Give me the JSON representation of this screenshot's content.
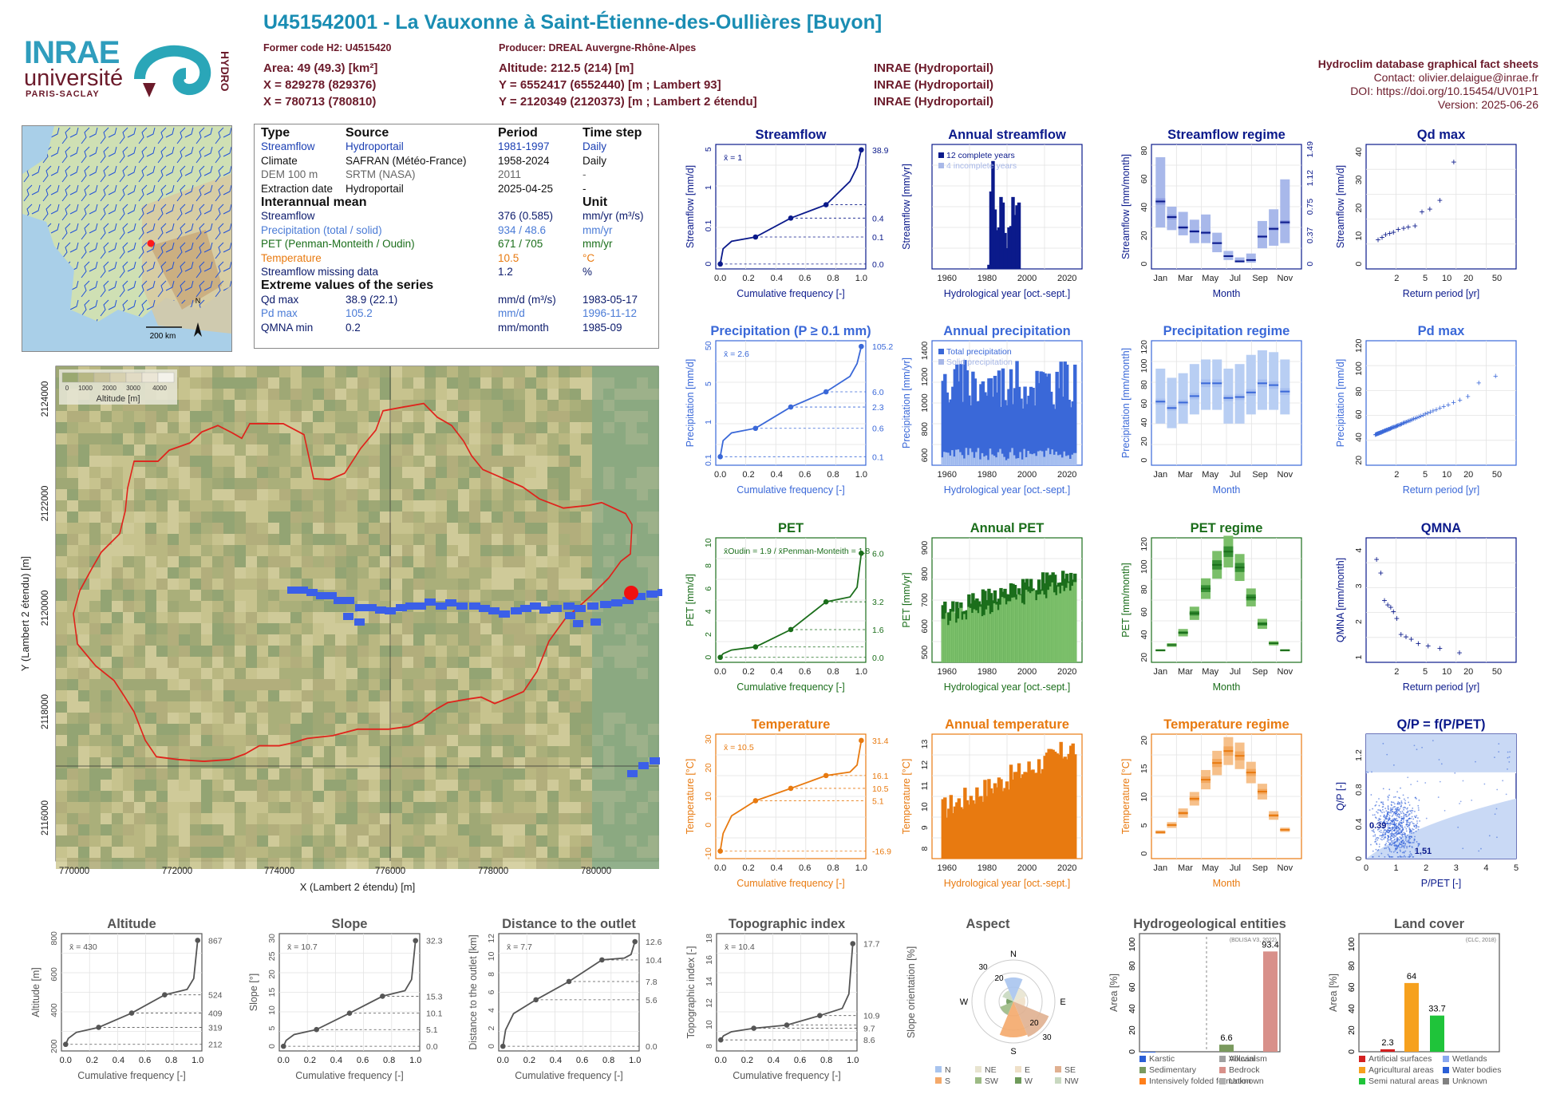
{
  "header": {
    "title": "U451542001 - La Vauxonne à Saint-Étienne-des-Oullières [Buyon]",
    "former_code": "Former code H2: U4515420",
    "producer": "Producer: DREAL Auvergne-Rhône-Alpes",
    "area": "Area: 49 (49.3) [km²]",
    "x_l93": "X = 829278 (829376)",
    "x_l2": "X = 780713 (780810)",
    "altitude": "Altitude: 212.5 (214) [m]",
    "y_l93": "Y = 6552417 (6552440) [m ; Lambert 93]",
    "y_l2": "Y = 2120349 (2120373) [m ; Lambert 2 étendu]",
    "src1": "INRAE (Hydroportail)",
    "src2": "INRAE (Hydroportail)",
    "src3": "INRAE (Hydroportail)"
  },
  "logos": {
    "inrae": "INRAE",
    "univ": "université",
    "ps": "PARIS-SACLAY",
    "hydro": "HYDRO"
  },
  "right_info": {
    "title": "Hydroclim database graphical fact sheets",
    "contact": "Contact: olivier.delaigue@inrae.fr",
    "doi": "DOI: https://doi.org/10.15454/UV01P1",
    "version": "Version: 2025-06-26"
  },
  "france_map": {
    "north": "N",
    "scale": "200 km"
  },
  "info_table": {
    "headers": [
      "Type",
      "Source",
      "Period",
      "Time step"
    ],
    "rows": [
      [
        "Streamflow",
        "Hydroportail",
        "1981-1997",
        "Daily"
      ],
      [
        "Climate",
        "SAFRAN (Météo-France)",
        "1958-2024",
        "Daily"
      ],
      [
        "DEM 100 m",
        "SRTM (NASA)",
        "2011",
        "-"
      ],
      [
        "Extraction date",
        "Hydroportail",
        "2025-04-25",
        "-"
      ]
    ],
    "mean_title": "Interannual mean",
    "unit_title": "Unit",
    "means": [
      [
        "Streamflow",
        "376 (0.585)",
        "mm/yr (m³/s)"
      ],
      [
        "Precipitation (total / solid)",
        "934 / 48.6",
        "mm/yr"
      ],
      [
        "PET (Penman-Monteith / Oudin)",
        "671 / 705",
        "mm/yr"
      ],
      [
        "Temperature",
        "10.5",
        "°C"
      ],
      [
        "Streamflow missing data",
        "1.2",
        "%"
      ]
    ],
    "extreme_title": "Extreme values of the series",
    "extremes": [
      [
        "Qd max",
        "38.9 (22.1)",
        "mm/d (m³/s)",
        "1983-05-17"
      ],
      [
        "Pd max",
        "105.2",
        "mm/d",
        "1996-11-12"
      ],
      [
        "QMNA min",
        "0.2",
        "mm/month",
        "1985-09"
      ]
    ]
  },
  "colors": {
    "streamflow": "#0b1a8b",
    "precip": "#3a68d8",
    "pet": "#1b6e1b",
    "temp": "#e87a10",
    "title": "#1a8db3",
    "dark": "#6b1a2a"
  },
  "chart_data": [
    {
      "type": "line",
      "title": "Streamflow",
      "xlabel": "Cumulative frequency [-]",
      "ylabel": "Streamflow [mm/d]",
      "mean_label": "x̄ = 1",
      "x": [
        0,
        0.25,
        0.5,
        0.75,
        1.0
      ],
      "y": [
        0.0,
        0.1,
        0.4,
        1,
        38.9
      ],
      "right_ticks": [
        "38.9",
        "0.4",
        "0.1",
        "0.0"
      ]
    },
    {
      "type": "bar",
      "title": "Annual streamflow",
      "xlabel": "Hydrological year [oct.-sept.]",
      "ylabel": "Streamflow [mm/yr]",
      "legend": [
        "12 complete years",
        "4 incomplete years"
      ],
      "x": [
        1981,
        1982,
        1983,
        1984,
        1985,
        1986,
        1987,
        1988,
        1989,
        1990,
        1991,
        1992,
        1993,
        1994,
        1995,
        1996
      ],
      "values": [
        30,
        560,
        780,
        430,
        280,
        300,
        520,
        480,
        260,
        150,
        300,
        310,
        520,
        390,
        460,
        480
      ],
      "xticks": [
        "1960",
        "1980",
        "2000",
        "2020"
      ]
    },
    {
      "type": "box",
      "title": "Streamflow regime",
      "xlabel": "Month",
      "ylabel": "Streamflow [mm/month]",
      "categories": [
        "Jan",
        "Feb",
        "Mar",
        "Apr",
        "May",
        "Jun",
        "Jul",
        "Aug",
        "Sep",
        "Oct",
        "Nov",
        "Dec"
      ],
      "median": [
        48,
        36,
        28,
        25,
        24,
        16,
        6,
        2,
        3,
        21,
        27,
        32
      ],
      "low": [
        28,
        26,
        22,
        16,
        16,
        9,
        3,
        1,
        1,
        12,
        14,
        16
      ],
      "high": [
        82,
        44,
        40,
        34,
        38,
        24,
        10,
        5,
        8,
        33,
        42,
        65
      ],
      "yticks": [
        "0",
        "20",
        "40",
        "60",
        "80"
      ],
      "right_ticks": [
        "0",
        "0.37",
        "0.75",
        "1.12",
        "1.49"
      ],
      "xticks": [
        "Jan",
        "Mar",
        "May",
        "Jul",
        "Sep",
        "Nov"
      ]
    },
    {
      "type": "scatter",
      "title": "Qd max",
      "xlabel": "Return period [yr]",
      "ylabel": "Streamflow [mm/d]",
      "x": [
        1.1,
        1.25,
        1.4,
        1.6,
        1.8,
        2.1,
        2.5,
        2.9,
        3.6,
        4.5,
        5.8,
        8,
        12.5
      ],
      "y": [
        9.5,
        10.5,
        11.5,
        12,
        12.5,
        13.5,
        14,
        14.5,
        15,
        20.5,
        21.5,
        25,
        40
      ],
      "xticks": [
        "2",
        "5",
        "10",
        "20",
        "50"
      ],
      "yticks": [
        "0",
        "10",
        "20",
        "30",
        "40"
      ]
    },
    {
      "type": "line",
      "title": "Precipitation (P ≥ 0.1 mm)",
      "xlabel": "Cumulative frequency [-]",
      "ylabel": "Precipitation [mm/d]",
      "mean_label": "x̄ = 2.6",
      "x": [
        0,
        0.25,
        0.5,
        0.75,
        1.0
      ],
      "y": [
        0.1,
        0.6,
        2.3,
        6.0,
        105.2
      ],
      "right_ticks": [
        "105.2",
        "6.0",
        "2.3",
        "0.6",
        "0.1"
      ]
    },
    {
      "type": "bar",
      "title": "Annual precipitation",
      "xlabel": "Hydrological year [oct.-sept.]",
      "ylabel": "Precipitation [mm/yr]",
      "legend": [
        "Total precipitation",
        "Solid precipitation"
      ],
      "xticks": [
        "1960",
        "1980",
        "2000",
        "2020"
      ],
      "yticks": [
        "600",
        "800",
        "1000",
        "1200",
        "1400"
      ]
    },
    {
      "type": "box",
      "title": "Precipitation regime",
      "xlabel": "Month",
      "ylabel": "Precipitation [mm/month]",
      "categories": [
        "Jan",
        "Feb",
        "Mar",
        "Apr",
        "May",
        "Jun",
        "Jul",
        "Aug",
        "Sep",
        "Oct",
        "Nov",
        "Dec"
      ],
      "median": [
        64,
        57,
        63,
        70,
        84,
        84,
        68,
        69,
        74,
        84,
        82,
        75
      ],
      "low": [
        40,
        35,
        40,
        50,
        55,
        55,
        40,
        40,
        50,
        55,
        55,
        50
      ],
      "high": [
        100,
        90,
        95,
        105,
        110,
        110,
        100,
        105,
        115,
        120,
        118,
        110
      ],
      "yticks": [
        "0",
        "20",
        "40",
        "60",
        "80",
        "100",
        "120"
      ],
      "xticks": [
        "Jan",
        "Mar",
        "May",
        "Jul",
        "Sep",
        "Nov"
      ]
    },
    {
      "type": "scatter",
      "title": "Pd max",
      "xlabel": "Return period [yr]",
      "ylabel": "Precipitation [mm/d]",
      "xticks": [
        "2",
        "5",
        "10",
        "20",
        "50"
      ],
      "yticks": [
        "20",
        "40",
        "60",
        "80",
        "100",
        "120"
      ],
      "y_max": 105.2
    },
    {
      "type": "line",
      "title": "PET",
      "xlabel": "Cumulative frequency [-]",
      "ylabel": "PET [mm/d]",
      "mean_label": "x̄Oudin = 1.9 / x̄Penman-Monteith = 1.8",
      "x": [
        0,
        0.25,
        0.5,
        0.75,
        1.0
      ],
      "y": [
        0.0,
        0.6,
        1.6,
        3.2,
        6.0
      ],
      "right_ticks": [
        "6.0",
        "3.2",
        "1.6",
        "0.0"
      ]
    },
    {
      "type": "bar",
      "title": "Annual PET",
      "xlabel": "Hydrological year [oct.-sept.]",
      "ylabel": "PET [mm/yr]",
      "xticks": [
        "1960",
        "1980",
        "2000",
        "2020"
      ],
      "yticks": [
        "500",
        "600",
        "700",
        "800",
        "900"
      ]
    },
    {
      "type": "box",
      "title": "PET regime",
      "xlabel": "Month",
      "ylabel": "PET [mm/month]",
      "categories": [
        "Jan",
        "Feb",
        "Mar",
        "Apr",
        "May",
        "Jun",
        "Jul",
        "Aug",
        "Sep",
        "Oct",
        "Nov",
        "Dec"
      ],
      "median": [
        8,
        14,
        28,
        50,
        78,
        105,
        120,
        102,
        68,
        38,
        16,
        8
      ],
      "yticks": [
        "20",
        "40",
        "60",
        "80",
        "100",
        "120"
      ],
      "xticks": [
        "Jan",
        "Mar",
        "May",
        "Jul",
        "Sep",
        "Nov"
      ]
    },
    {
      "type": "scatter",
      "title": "QMNA",
      "xlabel": "Return period [yr]",
      "ylabel": "QMNA [mm/month]",
      "x": [
        1.05,
        1.2,
        1.35,
        1.5,
        1.65,
        1.8,
        2.0,
        2.3,
        2.7,
        3.2,
        4,
        5.5,
        8,
        15
      ],
      "y": [
        4.3,
        3.7,
        2.5,
        2.3,
        2.2,
        2.0,
        1.7,
        1.0,
        0.9,
        0.8,
        0.6,
        0.5,
        0.4,
        0.2
      ],
      "xticks": [
        "2",
        "5",
        "10",
        "20",
        "50"
      ],
      "yticks": [
        "1",
        "2",
        "3",
        "4"
      ]
    },
    {
      "type": "line",
      "title": "Temperature",
      "xlabel": "Cumulative frequency [-]",
      "ylabel": "Temperature [°C]",
      "mean_label": "x̄ = 10.5",
      "x": [
        0,
        0.25,
        0.5,
        0.75,
        1.0
      ],
      "y": [
        -16.9,
        5.1,
        10.5,
        16.1,
        31.4
      ],
      "right_ticks": [
        "31.4",
        "16.1",
        "10.5",
        "5.1",
        "-16.9"
      ]
    },
    {
      "type": "bar",
      "title": "Annual temperature",
      "xlabel": "Hydrological year [oct.-sept.]",
      "ylabel": "Temperature [°C]",
      "xticks": [
        "1960",
        "1980",
        "2000",
        "2020"
      ],
      "yticks": [
        "8",
        "9",
        "10",
        "11",
        "12",
        "13"
      ]
    },
    {
      "type": "box",
      "title": "Temperature regime",
      "xlabel": "Month",
      "ylabel": "Temperature [°C]",
      "categories": [
        "Jan",
        "Feb",
        "Mar",
        "Apr",
        "May",
        "Jun",
        "Jul",
        "Aug",
        "Sep",
        "Oct",
        "Nov",
        "Dec"
      ],
      "median": [
        2.5,
        4,
        6.5,
        9.5,
        13.5,
        17,
        19.5,
        18.5,
        15,
        11,
        6,
        3
      ],
      "yticks": [
        "0",
        "5",
        "10",
        "15",
        "20"
      ],
      "xticks": [
        "Jan",
        "Mar",
        "May",
        "Jul",
        "Sep",
        "Nov"
      ]
    },
    {
      "type": "scatter",
      "title": "Q/P = f(P/PET)",
      "xlabel": "P/PET [-]",
      "ylabel": "Q/P [-]",
      "annotations": [
        "0.39",
        "1.51"
      ],
      "xticks": [
        "0",
        "1",
        "2",
        "3",
        "4",
        "5"
      ],
      "yticks": [
        "0",
        "0.4",
        "0.8",
        "1.2"
      ]
    },
    {
      "type": "line",
      "title": "Altitude",
      "xlabel": "Cumulative frequency [-]",
      "ylabel": "Altitude [m]",
      "mean_label": "x̄ = 430",
      "x": [
        0,
        0.25,
        0.5,
        0.75,
        1.0
      ],
      "y": [
        212,
        319,
        409,
        524,
        867
      ],
      "right_ticks": [
        "867",
        "524",
        "409",
        "319",
        "212"
      ]
    },
    {
      "type": "line",
      "title": "Slope",
      "xlabel": "Cumulative frequency [-]",
      "ylabel": "Slope [°]",
      "mean_label": "x̄ = 10.7",
      "x": [
        0,
        0.25,
        0.5,
        0.75,
        1.0
      ],
      "y": [
        0.0,
        5.1,
        10.1,
        15.3,
        32.3
      ],
      "right_ticks": [
        "32.3",
        "15.3",
        "10.1",
        "5.1",
        "0.0"
      ]
    },
    {
      "type": "line",
      "title": "Distance to the outlet",
      "xlabel": "Cumulative frequency [-]",
      "ylabel": "Distance to the outlet [km]",
      "mean_label": "x̄ = 7.7",
      "x": [
        0,
        0.25,
        0.5,
        0.75,
        1.0
      ],
      "y": [
        0.0,
        5.6,
        7.8,
        10.4,
        12.6
      ],
      "right_ticks": [
        "12.6",
        "10.4",
        "7.8",
        "5.6",
        "0.0"
      ]
    },
    {
      "type": "line",
      "title": "Topographic index",
      "xlabel": "Cumulative frequency [-]",
      "ylabel": "Topographic index [-]",
      "mean_label": "x̄ = 10.4",
      "x": [
        0,
        0.25,
        0.5,
        0.75,
        1.0
      ],
      "y": [
        8.6,
        9.7,
        10.0,
        10.9,
        17.7
      ],
      "right_ticks": [
        "17.7",
        "10.9",
        "9.7",
        "8.6"
      ]
    },
    {
      "type": "pie",
      "title": "Aspect",
      "ylabel": "Slope orientation [%]",
      "categories": [
        "N",
        "NE",
        "E",
        "SE",
        "S",
        "SW",
        "W",
        "NW"
      ],
      "labels": [
        "N",
        "E",
        "S",
        "W",
        "NE",
        "SE",
        "SW",
        "NW"
      ]
    },
    {
      "type": "bar",
      "title": "Hydrogeological entities",
      "ylabel": "Area [%]",
      "source": "(BDLISA V3, 2022)",
      "categories": [
        "Karstic",
        "Sedimentary",
        "Intensively folded formation",
        "Alluvial",
        "Volcanism",
        "Bedrock",
        "Unknown"
      ],
      "values": [
        0,
        6.6,
        0,
        0,
        0,
        93.4,
        0
      ],
      "labels": [
        "6.6",
        "93.4"
      ]
    },
    {
      "type": "bar",
      "title": "Land cover",
      "ylabel": "Area [%]",
      "source": "(CLC, 2018)",
      "categories": [
        "Artificial surfaces",
        "Agricultural areas",
        "Semi natural areas",
        "Wetlands",
        "Water bodies",
        "Unknown"
      ],
      "values": [
        2.3,
        64,
        33.7,
        0,
        0,
        0
      ],
      "labels": [
        "2.3",
        "64",
        "33.7"
      ]
    }
  ],
  "basin_map": {
    "legend_title": "Altitude [m]",
    "legend_ticks": [
      "0",
      "1000",
      "2000",
      "3000",
      "4000"
    ],
    "xlabel": "X (Lambert 2 étendu) [m]",
    "ylabel": "Y (Lambert 2 étendu) [m]",
    "xticks": [
      "770000",
      "772000",
      "774000",
      "776000",
      "778000",
      "780000"
    ],
    "yticks": [
      "2116000",
      "2118000",
      "2120000",
      "2122000",
      "2124000"
    ]
  }
}
